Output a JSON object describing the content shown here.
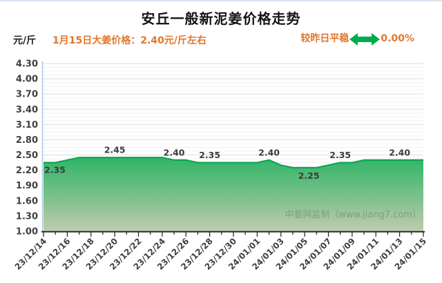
{
  "header": {
    "title": "安丘一般新泥姜价格走势",
    "unit_label": "元/斤",
    "price_note": "1月15日大姜价格：2.40元/斤左右",
    "trend_label": "较昨日平稳",
    "trend_icon": "double-horizontal-arrow",
    "trend_value": "0.00%"
  },
  "colors": {
    "accent_orange": "#E2762B",
    "trend_green": "#00AC4F",
    "line_green": "#0EA551",
    "fill_top": "#2EB566",
    "fill_bottom": "#C0CBAD",
    "grid_minor": "#F0F0F0",
    "grid_major": "#DBDBDB",
    "y_axis": "#A9C7E3",
    "x_axis": "#1F1F1F",
    "tick_text": "#3F3F3F"
  },
  "watermark": "中姜网监制（www.jiang7.com）",
  "chart_data": {
    "type": "area",
    "title": "安丘一般新泥姜价格走势",
    "ylabel_unit": "元/斤",
    "ylim": [
      1.0,
      4.3
    ],
    "y_tick_step": 0.3,
    "y_ticks": [
      "1.00",
      "1.30",
      "1.60",
      "1.90",
      "2.20",
      "2.50",
      "2.80",
      "3.10",
      "3.40",
      "3.70",
      "4.00",
      "4.30"
    ],
    "x": [
      "23/12/14",
      "23/12/15",
      "23/12/16",
      "23/12/17",
      "23/12/18",
      "23/12/19",
      "23/12/20",
      "23/12/21",
      "23/12/22",
      "23/12/23",
      "23/12/24",
      "23/12/25",
      "23/12/26",
      "23/12/27",
      "23/12/28",
      "23/12/29",
      "23/12/30",
      "23/12/31",
      "24/01/01",
      "24/01/02",
      "24/01/03",
      "24/01/04",
      "24/01/05",
      "24/01/06",
      "24/01/07",
      "24/01/08",
      "24/01/09",
      "24/01/10",
      "24/01/11",
      "24/01/12",
      "24/01/13",
      "24/01/14",
      "24/01/15"
    ],
    "values": [
      2.35,
      2.35,
      2.4,
      2.45,
      2.45,
      2.45,
      2.45,
      2.45,
      2.45,
      2.45,
      2.45,
      2.4,
      2.4,
      2.35,
      2.35,
      2.35,
      2.35,
      2.35,
      2.35,
      2.4,
      2.3,
      2.25,
      2.25,
      2.25,
      2.3,
      2.35,
      2.35,
      2.4,
      2.4,
      2.4,
      2.4,
      2.4,
      2.4
    ],
    "x_label_every": 2,
    "grid": true,
    "legend": "none",
    "point_labels": [
      {
        "i": 0,
        "text": "2.35",
        "pos": "below-start"
      },
      {
        "i": 6,
        "text": "2.45",
        "pos": "above"
      },
      {
        "i": 11,
        "text": "2.40",
        "pos": "above"
      },
      {
        "i": 14,
        "text": "2.35",
        "pos": "above"
      },
      {
        "i": 19,
        "text": "2.40",
        "pos": "above"
      },
      {
        "i": 22,
        "text": "2.25",
        "pos": "below"
      },
      {
        "i": 25,
        "text": "2.35",
        "pos": "above"
      },
      {
        "i": 30,
        "text": "2.40",
        "pos": "above"
      }
    ]
  }
}
